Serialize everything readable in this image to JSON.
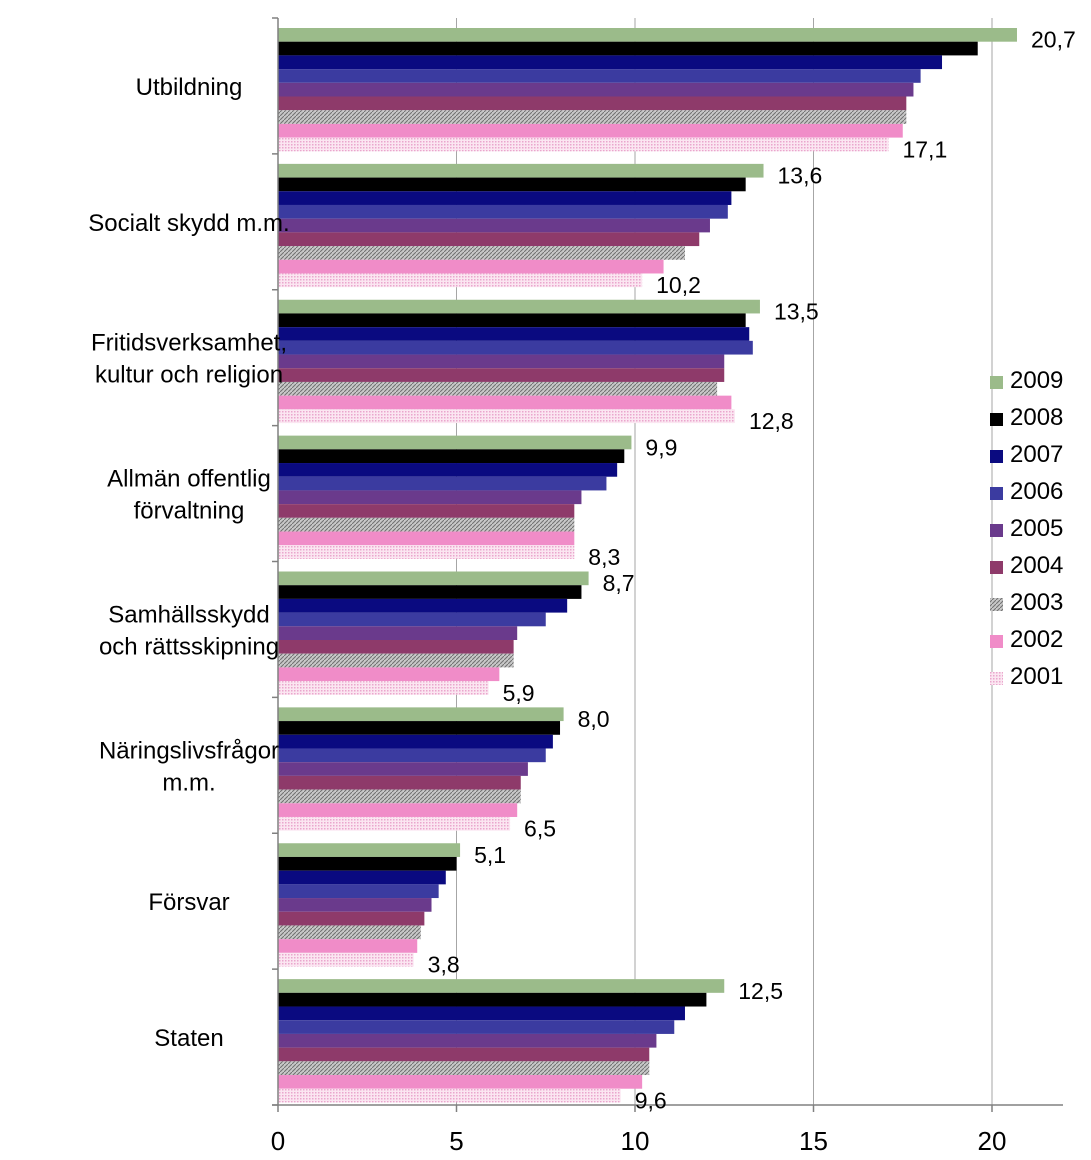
{
  "chart_data": {
    "type": "bar",
    "orientation": "horizontal",
    "categories": [
      [
        "Utbildning"
      ],
      [
        "Socialt skydd m.m."
      ],
      [
        "Fritidsverksamhet,",
        "kultur och religion"
      ],
      [
        "Allmän offentlig",
        "förvaltning"
      ],
      [
        "Samhällsskydd",
        "och rättsskipning"
      ],
      [
        "Näringslivsfrågor",
        "m.m."
      ],
      [
        "Försvar"
      ],
      [
        "Staten"
      ]
    ],
    "series": [
      {
        "name": "2009",
        "color": "#9bbb8a",
        "values": [
          20.7,
          13.6,
          13.5,
          9.9,
          8.7,
          8.0,
          5.1,
          12.5
        ]
      },
      {
        "name": "2008",
        "color": "#000000",
        "values": [
          19.6,
          13.1,
          13.1,
          9.7,
          8.5,
          7.9,
          5.0,
          12.0
        ]
      },
      {
        "name": "2007",
        "color": "#0a0a80",
        "values": [
          18.6,
          12.7,
          13.2,
          9.5,
          8.1,
          7.7,
          4.7,
          11.4
        ]
      },
      {
        "name": "2006",
        "color": "#3b3ba0",
        "values": [
          18.0,
          12.6,
          13.3,
          9.2,
          7.5,
          7.5,
          4.5,
          11.1
        ]
      },
      {
        "name": "2005",
        "color": "#6a3a8c",
        "values": [
          17.8,
          12.1,
          12.5,
          8.5,
          6.7,
          7.0,
          4.3,
          10.6
        ]
      },
      {
        "name": "2004",
        "color": "#8e3a6a",
        "values": [
          17.6,
          11.8,
          12.5,
          8.3,
          6.6,
          6.8,
          4.1,
          10.4
        ]
      },
      {
        "name": "2003",
        "color": "#a9a9a9",
        "pattern": "hatch",
        "values": [
          17.6,
          11.4,
          12.3,
          8.3,
          6.6,
          6.8,
          4.0,
          10.4
        ]
      },
      {
        "name": "2002",
        "color": "#f08cc8",
        "values": [
          17.5,
          10.8,
          12.7,
          8.3,
          6.2,
          6.7,
          3.9,
          10.2
        ]
      },
      {
        "name": "2001",
        "color": "#f2bcdc",
        "pattern": "dots",
        "values": [
          17.1,
          10.2,
          12.8,
          8.3,
          5.9,
          6.5,
          3.8,
          9.6
        ]
      }
    ],
    "data_labels": [
      {
        "category": 0,
        "series": "2009",
        "text": "20,7"
      },
      {
        "category": 0,
        "series": "2001",
        "text": "17,1"
      },
      {
        "category": 1,
        "series": "2009",
        "text": "13,6"
      },
      {
        "category": 1,
        "series": "2001",
        "text": "10,2"
      },
      {
        "category": 2,
        "series": "2009",
        "text": "13,5"
      },
      {
        "category": 2,
        "series": "2001",
        "text": "12,8"
      },
      {
        "category": 3,
        "series": "2009",
        "text": "9,9"
      },
      {
        "category": 3,
        "series": "2001",
        "text": "8,3"
      },
      {
        "category": 4,
        "series": "2009",
        "text": "8,7"
      },
      {
        "category": 4,
        "series": "2001",
        "text": "5,9"
      },
      {
        "category": 5,
        "series": "2009",
        "text": "8,0"
      },
      {
        "category": 5,
        "series": "2001",
        "text": "6,5"
      },
      {
        "category": 6,
        "series": "2009",
        "text": "5,1"
      },
      {
        "category": 6,
        "series": "2001",
        "text": "3,8"
      },
      {
        "category": 7,
        "series": "2009",
        "text": "12,5"
      },
      {
        "category": 7,
        "series": "2001",
        "text": "9,6"
      }
    ],
    "xlim": [
      0,
      22
    ],
    "xticks": [
      0,
      5,
      10,
      15,
      20
    ],
    "xlabel": "",
    "ylabel": "",
    "title": "",
    "grid": "vertical",
    "legend": "right"
  }
}
